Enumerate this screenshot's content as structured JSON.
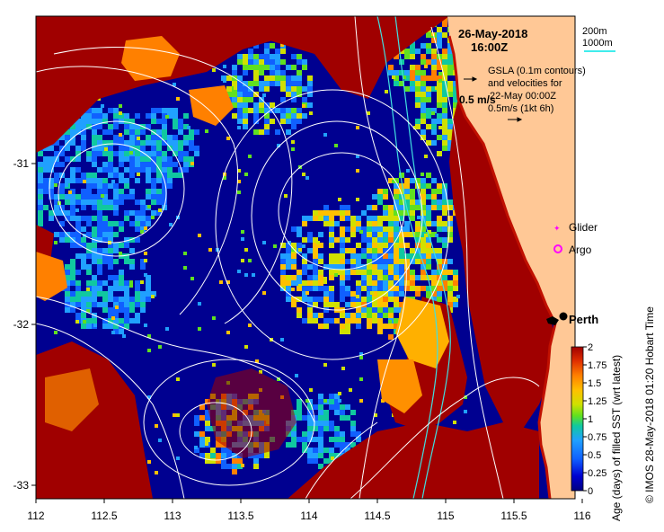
{
  "header": {
    "date": "26-May-2018",
    "time": "16:00Z"
  },
  "isobath_legend": {
    "line1": "200m",
    "line2": "1000m",
    "color2": "#00e5e5"
  },
  "gsla_note": {
    "line1": "GSLA (0.1m contours)",
    "line2": "and velocities for",
    "line3": "22-May 00:00Z",
    "scale_label": "0.5m/s (1kt 6h)",
    "arrow_label": "0.5 m/s"
  },
  "symbols": {
    "glider": {
      "label": "Glider",
      "color": "#ff00ff"
    },
    "argo": {
      "label": "Argo",
      "color": "#ff00ff"
    }
  },
  "city": {
    "label": "Perth"
  },
  "colorbar": {
    "title": "Age (days) of filled SST (wrt latest)",
    "ticks": [
      "0",
      "0.25",
      "0.5",
      "0.75",
      "1",
      "1.25",
      "1.5",
      "1.75",
      "2"
    ],
    "colors": [
      "#000080",
      "#0000d0",
      "#1060ff",
      "#20a0ff",
      "#10c8a0",
      "#60e020",
      "#d0e000",
      "#ffc000",
      "#ff8000",
      "#e03000",
      "#a00000"
    ]
  },
  "axes": {
    "x_ticks": [
      "112",
      "112.5",
      "113",
      "113.5",
      "114",
      "114.5",
      "115",
      "115.5",
      "116"
    ],
    "y_ticks": [
      "-31",
      "-32",
      "-33"
    ]
  },
  "credit": "© IMOS 28-May-2018 01:20 Hobart Time",
  "colors": {
    "land": "#ffc896",
    "ocean_fresh": "#000090",
    "ocean_old": "#a00000",
    "gsla_contour": "#ffffff",
    "isobath": "#40e0e0"
  }
}
